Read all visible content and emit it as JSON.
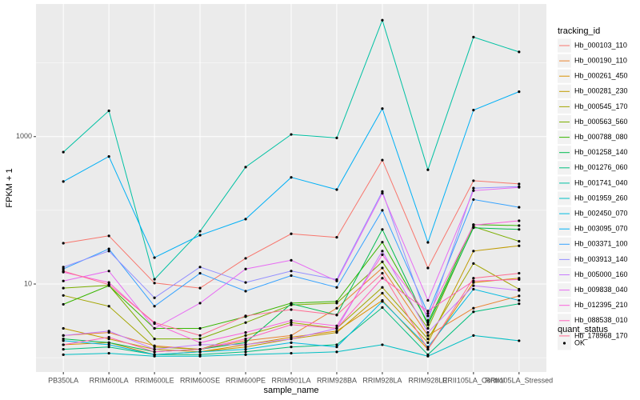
{
  "chart_data": {
    "type": "line",
    "x_label": "sample_name",
    "y_label": "FPKM + 1",
    "log_y": true,
    "grid": true,
    "point_color": "#000000",
    "categories": [
      "PB350LA",
      "RRIM600LA",
      "RRIM600LE",
      "RRIM600SE",
      "RRIM600PE",
      "RRIM901LA",
      "RRIM928BA",
      "RRIM928LA",
      "RRIM928LE",
      "RRII105LA_Control",
      "RRII105LA_Stressed"
    ],
    "ylim": [
      0.64,
      63000
    ],
    "yticks": [
      10,
      1000
    ],
    "y_minor_grid": [
      1,
      100,
      10000
    ],
    "legend_title": "tracking_id",
    "status_legend": {
      "title": "quant_status",
      "values": [
        "OK"
      ]
    },
    "series": [
      {
        "name": "Hb_000103_110",
        "color": "#F8766D",
        "values": [
          35.8,
          45,
          10.3,
          8.8,
          22.3,
          48,
          43,
          480,
          16.5,
          252,
          228
        ]
      },
      {
        "name": "Hb_000190_110",
        "color": "#EA8331",
        "values": [
          2.0,
          2.2,
          1.45,
          1.3,
          1.7,
          2.0,
          4.7,
          16.5,
          2.0,
          4.7,
          6.9
        ]
      },
      {
        "name": "Hb_000261_450",
        "color": "#D89000",
        "values": [
          1.5,
          1.6,
          1.1,
          1.2,
          1.5,
          1.9,
          2.3,
          6.0,
          1.3,
          10.5,
          12.0
        ]
      },
      {
        "name": "Hb_000281_230",
        "color": "#C09B00",
        "values": [
          2.5,
          1.8,
          1.3,
          1.2,
          1.4,
          1.8,
          2.2,
          7.5,
          1.6,
          28,
          33
        ]
      },
      {
        "name": "Hb_000545_170",
        "color": "#A3A500",
        "values": [
          7.0,
          5.0,
          1.4,
          1.3,
          2.0,
          3.0,
          2.5,
          9.0,
          1.8,
          19,
          8.5
        ]
      },
      {
        "name": "Hb_000563_560",
        "color": "#7CAE00",
        "values": [
          8.8,
          9.6,
          1.8,
          1.8,
          3.0,
          5.2,
          5.5,
          20,
          2.5,
          60,
          38
        ]
      },
      {
        "name": "Hb_000788_080",
        "color": "#39B600",
        "values": [
          5.3,
          9.5,
          2.5,
          2.5,
          3.6,
          5.5,
          5.8,
          37,
          3.0,
          64,
          62
        ]
      },
      {
        "name": "Hb_001258_140",
        "color": "#00BB4E",
        "values": [
          1.8,
          1.6,
          1.2,
          1.3,
          1.6,
          5.4,
          3.8,
          55,
          2.8,
          58,
          55
        ]
      },
      {
        "name": "Hb_001276_060",
        "color": "#00BF7D",
        "values": [
          1.3,
          1.4,
          1.1,
          1.1,
          1.2,
          1.4,
          1.5,
          4.8,
          1.1,
          4.2,
          5.4
        ]
      },
      {
        "name": "Hb_001741_040",
        "color": "#00C1A3",
        "values": [
          617,
          2240,
          11.6,
          52,
          386,
          1070,
          960,
          38000,
          355,
          22400,
          14100
        ]
      },
      {
        "name": "Hb_001959_260",
        "color": "#00BFC4",
        "values": [
          1.1,
          1.15,
          1.05,
          1.05,
          1.1,
          1.15,
          1.2,
          1.5,
          1.05,
          2.0,
          1.7
        ]
      },
      {
        "name": "Hb_002450_070",
        "color": "#00BAE0",
        "values": [
          1.7,
          1.5,
          1.1,
          1.2,
          1.3,
          1.6,
          1.4,
          5.8,
          1.4,
          8.5,
          6.0
        ]
      },
      {
        "name": "Hb_003095_070",
        "color": "#00B0F6",
        "values": [
          246,
          537,
          22.8,
          46,
          76,
          280,
          191,
          2400,
          36.7,
          2290,
          4070
        ]
      },
      {
        "name": "Hb_003371_100",
        "color": "#35A2FF",
        "values": [
          16,
          30,
          5.0,
          14,
          8.0,
          13,
          9.0,
          100,
          4.0,
          140,
          110
        ]
      },
      {
        "name": "Hb_003913_140",
        "color": "#9590FF",
        "values": [
          17,
          28,
          6.5,
          17,
          10.5,
          15,
          11.5,
          180,
          3.2,
          200,
          210
        ]
      },
      {
        "name": "Hb_005000_160",
        "color": "#C77CFF",
        "values": [
          2.0,
          2.3,
          1.3,
          1.5,
          1.5,
          1.8,
          2.5,
          28,
          2.2,
          9.5,
          8.2
        ]
      },
      {
        "name": "Hb_009838_040",
        "color": "#E76BF3",
        "values": [
          11,
          15,
          2.5,
          5.5,
          16,
          21,
          11,
          170,
          6.0,
          185,
          205
        ]
      },
      {
        "name": "Hb_012395_210",
        "color": "#FA62DB",
        "values": [
          14.5,
          10.5,
          2.9,
          1.6,
          2.2,
          3.2,
          2.7,
          25,
          3.7,
          63,
          72
        ]
      },
      {
        "name": "Hb_088538_010",
        "color": "#FF62BC",
        "values": [
          1.5,
          1.9,
          1.2,
          1.3,
          1.8,
          2.8,
          2.5,
          12,
          4.3,
          11,
          11.5
        ]
      },
      {
        "name": "Hb_178968_170",
        "color": "#FF6C91",
        "values": [
          15,
          9.8,
          3.0,
          2.0,
          3.7,
          4.5,
          3.8,
          14,
          1.3,
          12,
          14
        ]
      }
    ]
  }
}
